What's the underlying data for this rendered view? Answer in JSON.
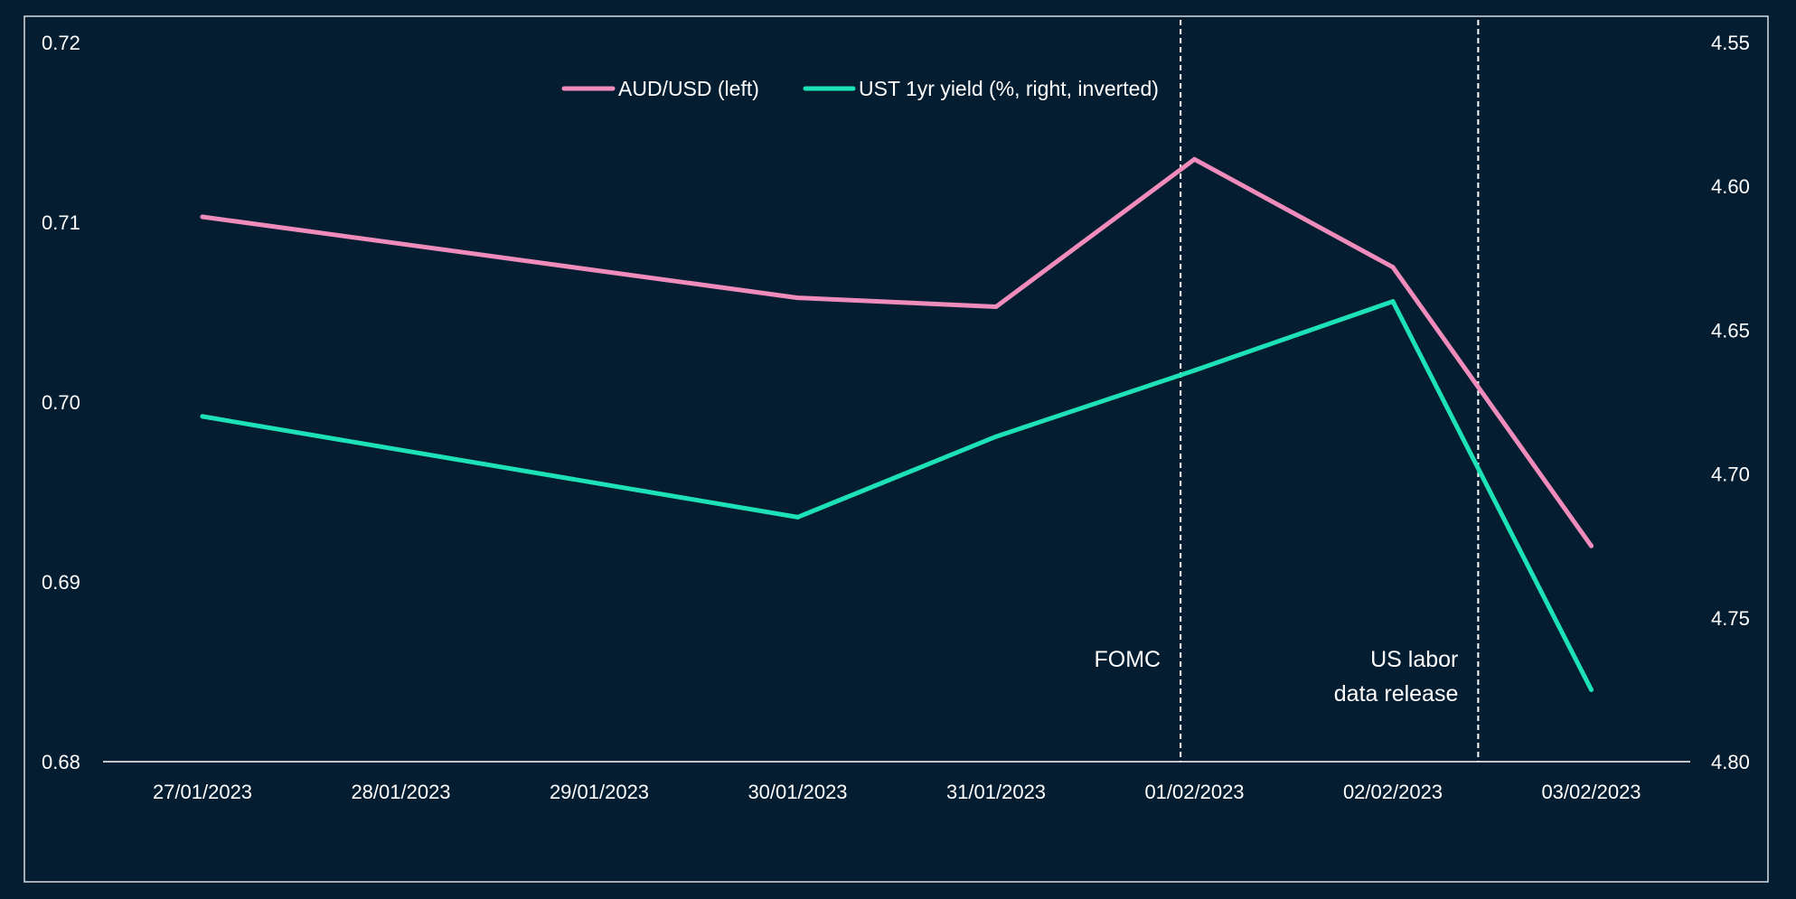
{
  "chart_data": {
    "type": "line",
    "categories": [
      "27/01/2023",
      "28/01/2023",
      "29/01/2023",
      "30/01/2023",
      "31/01/2023",
      "01/02/2023",
      "02/02/2023",
      "03/02/2023"
    ],
    "left_axis": {
      "ylim": [
        0.68,
        0.72
      ],
      "ticks": [
        "0.72",
        "0.71",
        "0.70",
        "0.69",
        "0.68"
      ]
    },
    "right_axis": {
      "ylim": [
        4.55,
        4.8
      ],
      "inverted": true,
      "ticks": [
        "4.55",
        "4.60",
        "4.65",
        "4.70",
        "4.75",
        "4.80"
      ]
    },
    "series": [
      {
        "name": "AUD/USD (left)",
        "axis": "left",
        "color": "#f08cbc",
        "points": [
          {
            "x": "27/01/2023",
            "y": 0.7103
          },
          {
            "x": "30/01/2023",
            "y": 0.7058
          },
          {
            "x": "31/01/2023",
            "y": 0.7053
          },
          {
            "x": "01/02/2023",
            "y": 0.7135
          },
          {
            "x": "02/02/2023",
            "y": 0.7075
          },
          {
            "x": "03/02/2023",
            "y": 0.692
          }
        ]
      },
      {
        "name": "UST 1yr yield (%, right, inverted)",
        "axis": "right",
        "color": "#1de2b8",
        "points": [
          {
            "x": "27/01/2023",
            "y": 4.68
          },
          {
            "x": "30/01/2023",
            "y": 4.715
          },
          {
            "x": "31/01/2023",
            "y": 4.687
          },
          {
            "x": "01/02/2023",
            "y": 4.664
          },
          {
            "x": "02/02/2023",
            "y": 4.64
          },
          {
            "x": "03/02/2023",
            "y": 4.775
          }
        ]
      }
    ],
    "annotations": [
      {
        "label": "FOMC",
        "lines": [
          "FOMC"
        ],
        "x": "01/02/2023",
        "offset": -0.07
      },
      {
        "label": "US labor data release",
        "lines": [
          "US labor",
          "data release"
        ],
        "x": "02/02/2023",
        "offset": 0.43
      }
    ],
    "grid": false,
    "legend": "top-center",
    "title": "",
    "xlabel": "",
    "ylabel": ""
  }
}
